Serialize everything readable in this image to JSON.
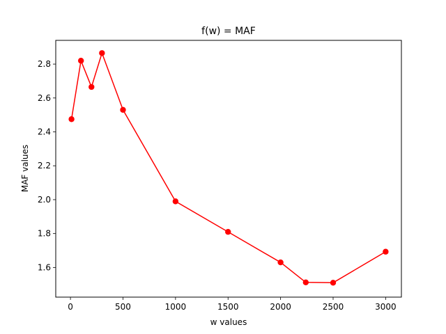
{
  "chart_data": {
    "type": "line",
    "title": "f(w) = MAF",
    "xlabel": "w values",
    "ylabel": "MAF values",
    "xlim": [
      -140,
      3150
    ],
    "ylim": [
      1.425,
      2.94
    ],
    "xticks": [
      0,
      500,
      1000,
      1500,
      2000,
      2500,
      3000
    ],
    "yticks": [
      1.6,
      1.8,
      2.0,
      2.2,
      2.4,
      2.6,
      2.8
    ],
    "ytick_labels": [
      "1.6",
      "1.8",
      "2.0",
      "2.2",
      "2.4",
      "2.6",
      "2.8"
    ],
    "grid": false,
    "legend": "none",
    "series": [
      {
        "color": "#ff0000",
        "marker": "circle",
        "x": [
          10,
          100,
          200,
          300,
          500,
          1000,
          1500,
          2000,
          2240,
          2500,
          3000
        ],
        "y": [
          2.475,
          2.82,
          2.665,
          2.865,
          2.53,
          1.99,
          1.81,
          1.63,
          1.512,
          1.51,
          1.693
        ]
      }
    ]
  }
}
